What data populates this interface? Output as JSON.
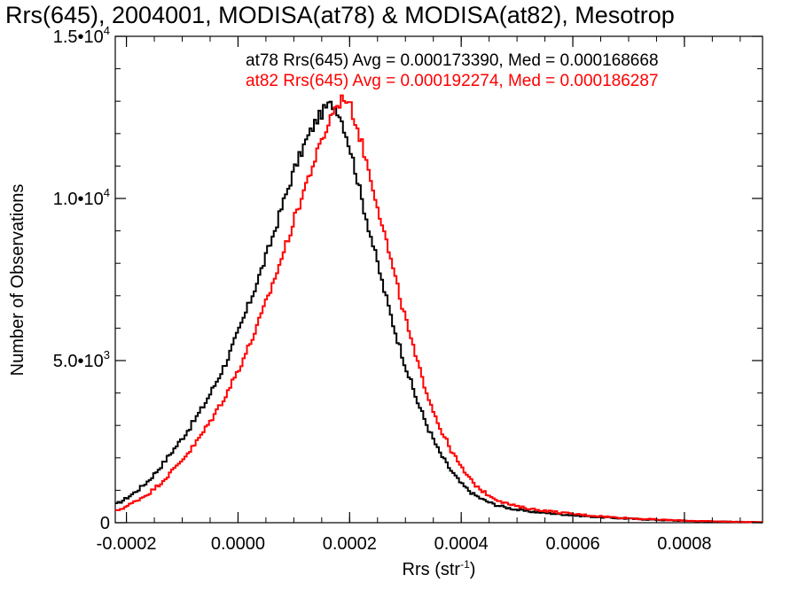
{
  "chart_data": {
    "type": "line",
    "title": "Rrs(645), 2004001, MODISA(at78) & MODISA(at82), Mesotrop",
    "xlabel": "Rrs (str",
    "xlabel_sup": "-1",
    "xlabel_end": ")",
    "ylabel": "Number of Observations",
    "xlim": [
      -0.00022,
      0.00094
    ],
    "ylim": [
      0,
      15000
    ],
    "x_ticks": [
      {
        "value": -0.0002,
        "label": "-0.0002"
      },
      {
        "value": 0.0,
        "label": "0.0000"
      },
      {
        "value": 0.0002,
        "label": "0.0002"
      },
      {
        "value": 0.0004,
        "label": "0.0004"
      },
      {
        "value": 0.0006,
        "label": "0.0006"
      },
      {
        "value": 0.0008,
        "label": "0.0008"
      }
    ],
    "y_ticks": [
      {
        "value": 0,
        "label": "0",
        "exp": ""
      },
      {
        "value": 5000,
        "label": "5.0•10",
        "exp": "3"
      },
      {
        "value": 10000,
        "label": "1.0•10",
        "exp": "4"
      },
      {
        "value": 15000,
        "label": "1.5•10",
        "exp": "4"
      }
    ],
    "grid": false,
    "series": [
      {
        "name": "at78",
        "color": "#000000",
        "annotation": "at78 Rrs(645) Avg = 0.000173390, Med = 0.000168668",
        "x": [
          -0.00022,
          -0.0002,
          -0.00018,
          -0.00016,
          -0.00014,
          -0.00012,
          -0.0001,
          -8e-05,
          -6e-05,
          -4e-05,
          -2e-05,
          0.0,
          2e-05,
          4e-05,
          6e-05,
          8e-05,
          0.0001,
          0.00012,
          0.00014,
          0.00016,
          0.00017,
          0.00018,
          0.00019,
          0.0002,
          0.00021,
          0.00022,
          0.00024,
          0.00026,
          0.00028,
          0.0003,
          0.00032,
          0.00034,
          0.00036,
          0.00038,
          0.0004,
          0.00042,
          0.00044,
          0.00046,
          0.00048,
          0.0005,
          0.00052,
          0.00054,
          0.00056,
          0.00058,
          0.0006,
          0.00064,
          0.00068,
          0.00072,
          0.00076,
          0.0008,
          0.00084,
          0.00088,
          0.00094
        ],
        "y": [
          550,
          750,
          1000,
          1300,
          1700,
          2150,
          2600,
          3100,
          3650,
          4300,
          5000,
          5850,
          6750,
          7700,
          8700,
          9800,
          10850,
          11700,
          12400,
          12850,
          12900,
          12700,
          12200,
          11600,
          10900,
          10100,
          8700,
          7300,
          6000,
          4850,
          3800,
          2950,
          2200,
          1650,
          1200,
          900,
          700,
          560,
          470,
          400,
          350,
          320,
          290,
          260,
          230,
          180,
          140,
          110,
          80,
          60,
          40,
          30,
          15
        ]
      },
      {
        "name": "at82",
        "color": "#ff0000",
        "annotation": "at82 Rrs(645) Avg = 0.000192274, Med = 0.000186287",
        "x": [
          -0.00022,
          -0.0002,
          -0.00018,
          -0.00016,
          -0.00014,
          -0.00012,
          -0.0001,
          -8e-05,
          -6e-05,
          -4e-05,
          -2e-05,
          0.0,
          2e-05,
          4e-05,
          6e-05,
          8e-05,
          0.0001,
          0.00012,
          0.00014,
          0.00016,
          0.00017,
          0.00018,
          0.00019,
          0.0002,
          0.00021,
          0.00022,
          0.00024,
          0.00026,
          0.00028,
          0.0003,
          0.00032,
          0.00034,
          0.00036,
          0.00038,
          0.0004,
          0.00042,
          0.00044,
          0.00046,
          0.00048,
          0.0005,
          0.00052,
          0.00054,
          0.00056,
          0.00058,
          0.0006,
          0.00064,
          0.00068,
          0.00072,
          0.00076,
          0.0008,
          0.00084,
          0.00088,
          0.00094
        ],
        "y": [
          350,
          500,
          700,
          900,
          1200,
          1550,
          1950,
          2350,
          2850,
          3400,
          4000,
          4700,
          5450,
          6300,
          7250,
          8250,
          9300,
          10350,
          11300,
          12200,
          12700,
          12900,
          13150,
          12900,
          12400,
          11800,
          10500,
          9100,
          7650,
          6300,
          5000,
          3950,
          3000,
          2300,
          1700,
          1250,
          950,
          750,
          600,
          500,
          440,
          390,
          350,
          310,
          270,
          210,
          160,
          120,
          90,
          65,
          45,
          30,
          15
        ]
      }
    ]
  }
}
